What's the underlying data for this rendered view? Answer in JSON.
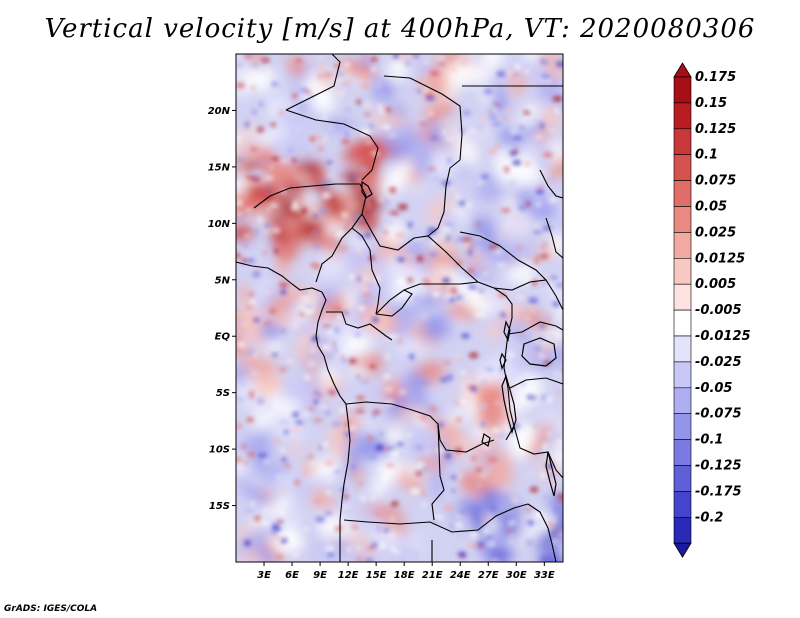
{
  "title": "Vertical velocity [m/s] at 400hPa, VT: 2020080306",
  "credit": "GrADS: IGES/COLA",
  "map": {
    "projection": "latlon",
    "lon_range": [
      0,
      35
    ],
    "lat_range": [
      -20,
      25
    ],
    "lat_ticks": [
      {
        "value": 20,
        "label": "20N"
      },
      {
        "value": 15,
        "label": "15N"
      },
      {
        "value": 10,
        "label": "10N"
      },
      {
        "value": 5,
        "label": "5N"
      },
      {
        "value": 0,
        "label": "EQ"
      },
      {
        "value": -5,
        "label": "5S"
      },
      {
        "value": -10,
        "label": "10S"
      },
      {
        "value": -15,
        "label": "15S"
      }
    ],
    "lon_ticks": [
      {
        "value": 3,
        "label": "3E"
      },
      {
        "value": 6,
        "label": "6E"
      },
      {
        "value": 9,
        "label": "9E"
      },
      {
        "value": 12,
        "label": "12E"
      },
      {
        "value": 15,
        "label": "15E"
      },
      {
        "value": 18,
        "label": "18E"
      },
      {
        "value": 21,
        "label": "21E"
      },
      {
        "value": 24,
        "label": "24E"
      },
      {
        "value": 27,
        "label": "27E"
      },
      {
        "value": 30,
        "label": "30E"
      },
      {
        "value": 33,
        "label": "33E"
      }
    ]
  },
  "colorbar": {
    "levels": [
      {
        "label": "0.175",
        "color": "#a50f15"
      },
      {
        "label": "0.15",
        "color": "#b81d22"
      },
      {
        "label": "0.125",
        "color": "#c8383a"
      },
      {
        "label": "0.1",
        "color": "#d6524f"
      },
      {
        "label": "0.075",
        "color": "#e06e68"
      },
      {
        "label": "0.05",
        "color": "#e98a82"
      },
      {
        "label": "0.025",
        "color": "#f2aaa2"
      },
      {
        "label": "0.0125",
        "color": "#f8c9c2"
      },
      {
        "label": "0.005",
        "color": "#fde3df"
      },
      {
        "label": "-0.005",
        "color": "#ffffff"
      },
      {
        "label": "-0.0125",
        "color": "#e3e3fb"
      },
      {
        "label": "-0.025",
        "color": "#c8c8f6"
      },
      {
        "label": "-0.05",
        "color": "#aeaef0"
      },
      {
        "label": "-0.075",
        "color": "#9494ea"
      },
      {
        "label": "-0.1",
        "color": "#7a7ae2"
      },
      {
        "label": "-0.125",
        "color": "#5f5fd8"
      },
      {
        "label": "-0.175",
        "color": "#4444cc"
      },
      {
        "label": "-0.2",
        "color": "#2a2ab8"
      }
    ],
    "low_end_color": "#1a1aa0",
    "high_end_color": "#a50f15"
  },
  "colors": {
    "field_neutral": "#d2d2f3",
    "positive": "#e98a82",
    "strong_positive": "#a50f15",
    "negative": "#7a7ae2",
    "strong_negative": "#2a2ab8",
    "boundary": "#000000"
  }
}
